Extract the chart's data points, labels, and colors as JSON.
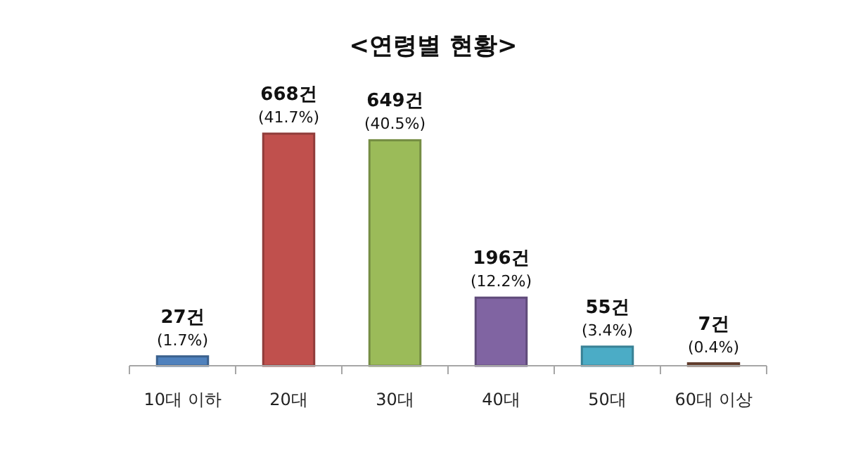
{
  "chart_data": {
    "type": "bar",
    "title": "<연령별 현황>",
    "categories": [
      "10대 이하",
      "20대",
      "30대",
      "40대",
      "50대",
      "60대 이상"
    ],
    "values": [
      27,
      668,
      649,
      196,
      55,
      7
    ],
    "colors": [
      "#4f81bd",
      "#c0504d",
      "#9bbb59",
      "#8064a2",
      "#4bacc6",
      "#7f4f3a"
    ],
    "value_labels": [
      "27건\n(1.7%)",
      "668건\n(41.7%)",
      "649건\n(40.5%)",
      "196건\n(12.2%)",
      "55건\n(3.4%)",
      "7건\n(0.4%)"
    ]
  }
}
